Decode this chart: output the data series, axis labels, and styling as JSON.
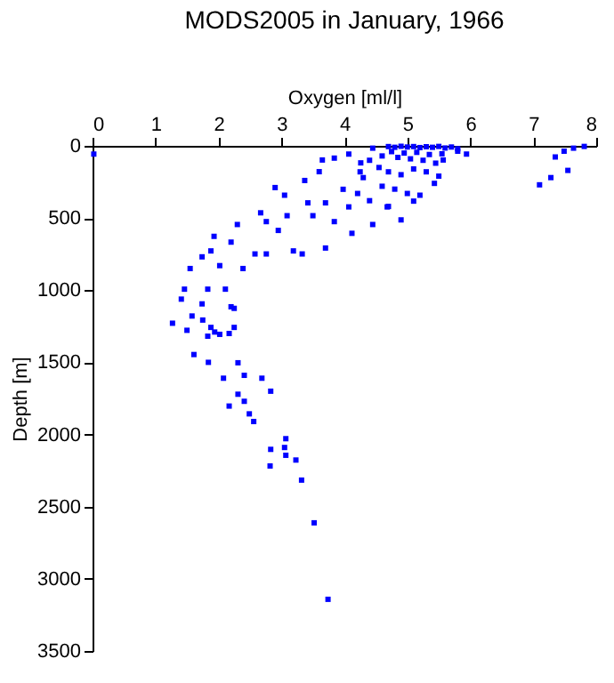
{
  "chart_data": {
    "type": "scatter",
    "title": "MODS2005 in January, 1966",
    "xlabel": "Oxygen [ml/l]",
    "ylabel": "Depth [m]",
    "xlim": [
      0,
      8
    ],
    "xticks": [
      0,
      1,
      2,
      3,
      4,
      5,
      6,
      7,
      8
    ],
    "ylim": [
      3500,
      0
    ],
    "yticks": [
      0,
      500,
      1000,
      1500,
      2000,
      2500,
      3000,
      3500
    ],
    "grid": false,
    "marker": "square",
    "series": [
      {
        "color": "#0000ff",
        "x": [
          0.02,
          7.1,
          7.28,
          7.55,
          7.35,
          7.49,
          7.64,
          7.81,
          5.94,
          5.8,
          5.57,
          5.43,
          5.2,
          5.1,
          4.9,
          4.45,
          4.68,
          4.07,
          4.12,
          3.7,
          3.33,
          3.19,
          2.9,
          3.05,
          3.37,
          3.6,
          3.65,
          3.84,
          4.07,
          4.26,
          4.45,
          3.42,
          3.7,
          3.98,
          4.21,
          2.67,
          2.76,
          2.95,
          3.09,
          3.5,
          3.84,
          2.3,
          2.2,
          1.93,
          1.88,
          1.74,
          1.55,
          2.58,
          2.76,
          2.39,
          2.02,
          1.46,
          1.83,
          2.11,
          1.41,
          1.74,
          2.2,
          1.27,
          1.5,
          1.88,
          2.25,
          1.83,
          2.02,
          1.61,
          1.84,
          2.31,
          2.08,
          2.41,
          2.69,
          2.83,
          2.17,
          2.31,
          2.41,
          2.49,
          2.56,
          3.07,
          2.83,
          3.05,
          3.07,
          3.23,
          2.82,
          3.32,
          3.52,
          3.74,
          1.75,
          1.94,
          2.25,
          2.17,
          1.58,
          4.7,
          4.8,
          4.9,
          5.0,
          5.1,
          5.2,
          5.3,
          5.4,
          5.5,
          5.6,
          5.7,
          5.8,
          4.75,
          4.95,
          5.15,
          5.35,
          5.55,
          4.85,
          5.05,
          5.25,
          5.45,
          4.6,
          4.4,
          4.55,
          4.7,
          4.9,
          5.1,
          5.3,
          5.5,
          4.3,
          4.6,
          4.8,
          5.0,
          4.25,
          4.4,
          4.7
        ],
        "values": [
          57,
          270,
          220,
          170,
          77,
          37,
          16,
          4,
          57,
          37,
          98,
          260,
          342,
          383,
          513,
          545,
          423,
          423,
          606,
          708,
          749,
          728,
          289,
          342,
          240,
          179,
          98,
          85,
          57,
          118,
          16,
          395,
          395,
          301,
          330,
          464,
          525,
          586,
          484,
          484,
          525,
          545,
          667,
          627,
          728,
          769,
          850,
          749,
          749,
          850,
          830,
          993,
          993,
          993,
          1062,
          1095,
          1115,
          1229,
          1278,
          1258,
          1258,
          1319,
          1306,
          1446,
          1500,
          1503,
          1610,
          1590,
          1610,
          1700,
          1803,
          1721,
          1770,
          1857,
          1910,
          2029,
          2103,
          2090,
          2144,
          2177,
          2218,
          2316,
          2612,
          3142,
          1207,
          1290,
          1126,
          1300,
          1179,
          5,
          10,
          3,
          8,
          5,
          12,
          6,
          10,
          4,
          15,
          8,
          20,
          40,
          50,
          45,
          60,
          55,
          80,
          90,
          100,
          120,
          70,
          100,
          150,
          180,
          200,
          160,
          180,
          210,
          220,
          280,
          300,
          330,
          180,
          380,
          420
        ]
      }
    ]
  }
}
